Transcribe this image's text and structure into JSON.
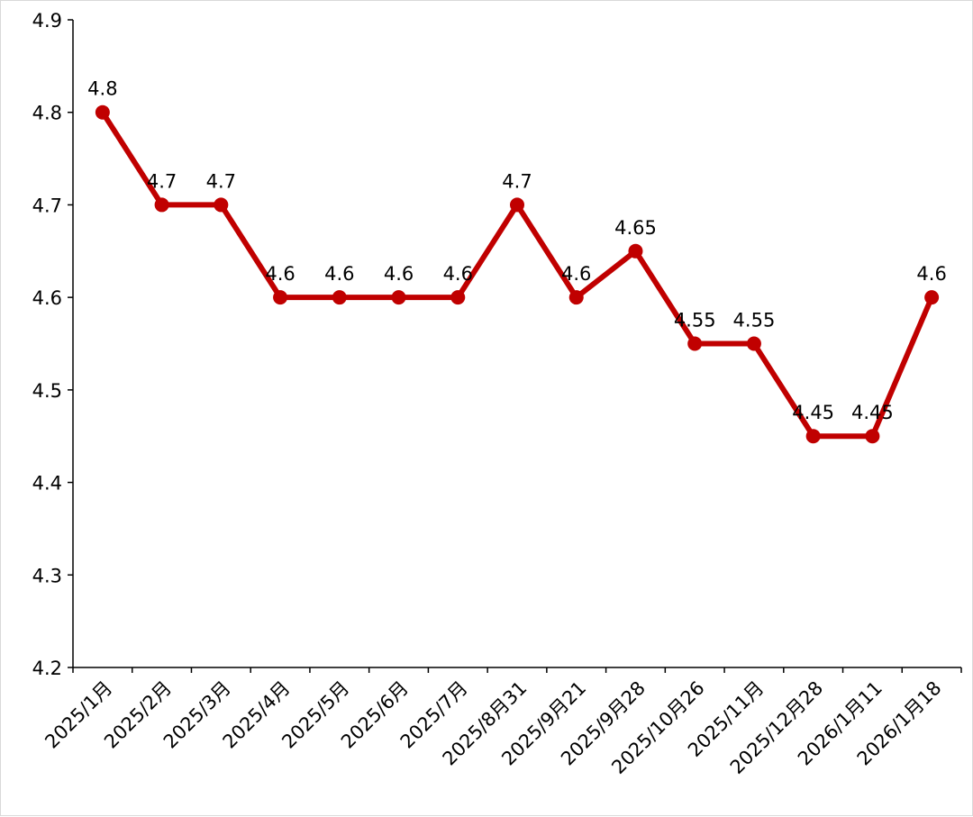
{
  "chart_data": {
    "type": "line",
    "title": "",
    "xlabel": "",
    "ylabel": "",
    "categories": [
      "2025/1月",
      "2025/2月",
      "2025/3月",
      "2025/4月",
      "2025/5月",
      "2025/6月",
      "2025/7月",
      "2025/8月31",
      "2025/9月21",
      "2025/9月28",
      "2025/10月26",
      "2025/11月",
      "2025/12月28",
      "2026/1月11",
      "2026/1月18"
    ],
    "values": [
      4.8,
      4.7,
      4.7,
      4.6,
      4.6,
      4.6,
      4.6,
      4.7,
      4.6,
      4.65,
      4.55,
      4.55,
      4.45,
      4.45,
      4.6
    ],
    "data_labels": [
      "4.8",
      "4.7",
      "4.7",
      "4.6",
      "4.6",
      "4.6",
      "4.6",
      "4.7",
      "4.6",
      "4.65",
      "4.55",
      "4.55",
      "4.45",
      "4.45",
      "4.6"
    ],
    "ylim": [
      4.2,
      4.9
    ],
    "yticks": [
      "4.2",
      "4.3",
      "4.4",
      "4.5",
      "4.6",
      "4.7",
      "4.8",
      "4.9"
    ],
    "grid": false,
    "legend": "none",
    "line_color": "#c00000"
  }
}
